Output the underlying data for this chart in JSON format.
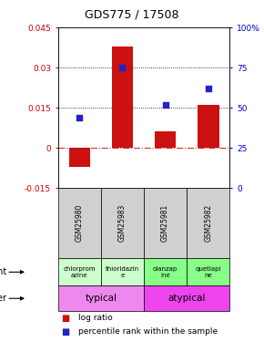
{
  "title": "GDS775 / 17508",
  "samples": [
    "GSM25980",
    "GSM25983",
    "GSM25981",
    "GSM25982"
  ],
  "log_ratios": [
    -0.007,
    0.038,
    0.006,
    0.016
  ],
  "percentile_ranks": [
    0.44,
    0.75,
    0.52,
    0.62
  ],
  "ylim_left": [
    -0.015,
    0.045
  ],
  "ylim_right": [
    0,
    1.0
  ],
  "yticks_left": [
    -0.015,
    0,
    0.015,
    0.03,
    0.045
  ],
  "yticks_right": [
    0,
    0.25,
    0.5,
    0.75,
    1.0
  ],
  "ytick_labels_right": [
    "0",
    "25",
    "50",
    "75",
    "100%"
  ],
  "bar_color": "#cc1111",
  "dot_color": "#2222cc",
  "agent_labels": [
    "chlorprom\nazine",
    "thioridazin\ne",
    "olanzap\nine",
    "quetiapi\nne"
  ],
  "agent_colors_left": "#ccffcc",
  "agent_colors_right": "#88ff88",
  "other_label_left": "typical",
  "other_label_right": "atypical",
  "other_color_left": "#ee88ee",
  "other_color_right": "#ee44ee",
  "legend_bar_label": "log ratio",
  "legend_dot_label": "percentile rank within the sample",
  "zero_line_color": "#cc3333",
  "left_tick_color": "#cc0000",
  "right_tick_color": "#0000cc",
  "sample_bg_color": "#d0d0d0",
  "title_fontsize": 9,
  "tick_fontsize": 6.5,
  "sample_fontsize": 5.5,
  "agent_fontsize": 5.0,
  "other_fontsize": 7.5,
  "label_fontsize": 7,
  "legend_fontsize": 6.5
}
